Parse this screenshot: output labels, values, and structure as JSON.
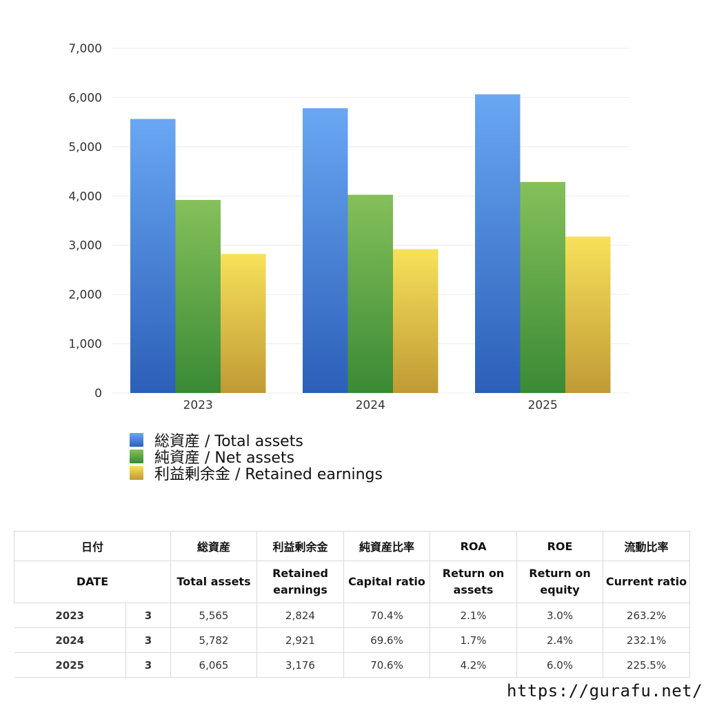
{
  "chart_data": {
    "type": "bar",
    "categories": [
      "2023",
      "2024",
      "2025"
    ],
    "series": [
      {
        "name": "総資産 / Total assets",
        "values": [
          5565,
          5782,
          6065
        ],
        "color_top": "#69a7f3",
        "color_bottom": "#2c5fb8"
      },
      {
        "name": "純資産 / Net assets",
        "values": [
          3920,
          4025,
          4285
        ],
        "color_top": "#85c05a",
        "color_bottom": "#3a8a35"
      },
      {
        "name": "利益剰余金 / Retained earnings",
        "values": [
          2824,
          2921,
          3176
        ],
        "color_top": "#f7e15a",
        "color_bottom": "#c09a35"
      }
    ],
    "yticks": [
      "0",
      "1,000",
      "2,000",
      "3,000",
      "4,000",
      "5,000",
      "6,000",
      "7,000"
    ],
    "ylim": [
      0,
      7000
    ],
    "grid": true,
    "legend_position": "bottom-left"
  },
  "table": {
    "header_jp": {
      "date": "日付",
      "total_assets": "総資産",
      "retained_earnings": "利益剰余金",
      "capital_ratio": "純資産比率",
      "roa": "ROA",
      "roe": "ROE",
      "current_ratio": "流動比率"
    },
    "header_en": {
      "date": "DATE",
      "total_assets": "Total assets",
      "retained_earnings": "Retained\nearnings",
      "capital_ratio": "Capital ratio",
      "roa": "Return on\nassets",
      "roe": "Return on\nequity",
      "current_ratio": "Current ratio"
    },
    "rows": [
      {
        "year": "2023",
        "month": "3",
        "total_assets": "5,565",
        "retained_earnings": "2,824",
        "capital_ratio": "70.4%",
        "roa": "2.1%",
        "roe": "3.0%",
        "current_ratio": "263.2%"
      },
      {
        "year": "2024",
        "month": "3",
        "total_assets": "5,782",
        "retained_earnings": "2,921",
        "capital_ratio": "69.6%",
        "roa": "1.7%",
        "roe": "2.4%",
        "current_ratio": "232.1%"
      },
      {
        "year": "2025",
        "month": "3",
        "total_assets": "6,065",
        "retained_earnings": "3,176",
        "capital_ratio": "70.6%",
        "roa": "4.2%",
        "roe": "6.0%",
        "current_ratio": "225.5%"
      }
    ]
  },
  "footer": {
    "url": "https://gurafu.net/"
  }
}
